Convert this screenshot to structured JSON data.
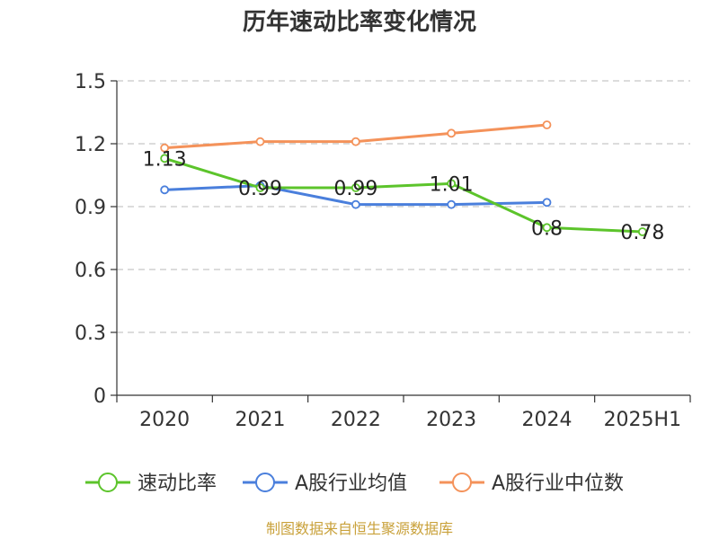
{
  "chart_data": {
    "type": "line",
    "title": "历年速动比率变化情况",
    "categories": [
      "2020",
      "2021",
      "2022",
      "2023",
      "2024",
      "2025H1"
    ],
    "ylim": [
      0,
      1.5
    ],
    "yticks": [
      "0",
      "0.3",
      "0.6",
      "0.9",
      "1.2",
      "1.5"
    ],
    "grid": true,
    "legend_position": "bottom",
    "series": [
      {
        "name": "速动比率",
        "color": "#5cc42b",
        "values": [
          1.13,
          0.99,
          0.99,
          1.01,
          0.8,
          0.78
        ],
        "labels": [
          "1.13",
          "0.99",
          "0.99",
          "1.01",
          "0.8",
          "0.78"
        ],
        "show_labels": true
      },
      {
        "name": "A股行业均值",
        "color": "#4a7fdc",
        "values": [
          0.98,
          1.0,
          0.91,
          0.91,
          0.92,
          null
        ],
        "show_labels": false
      },
      {
        "name": "A股行业中位数",
        "color": "#f4925a",
        "values": [
          1.18,
          1.21,
          1.21,
          1.25,
          1.29,
          null
        ],
        "show_labels": false
      }
    ]
  },
  "source_text": "制图数据来自恒生聚源数据库"
}
